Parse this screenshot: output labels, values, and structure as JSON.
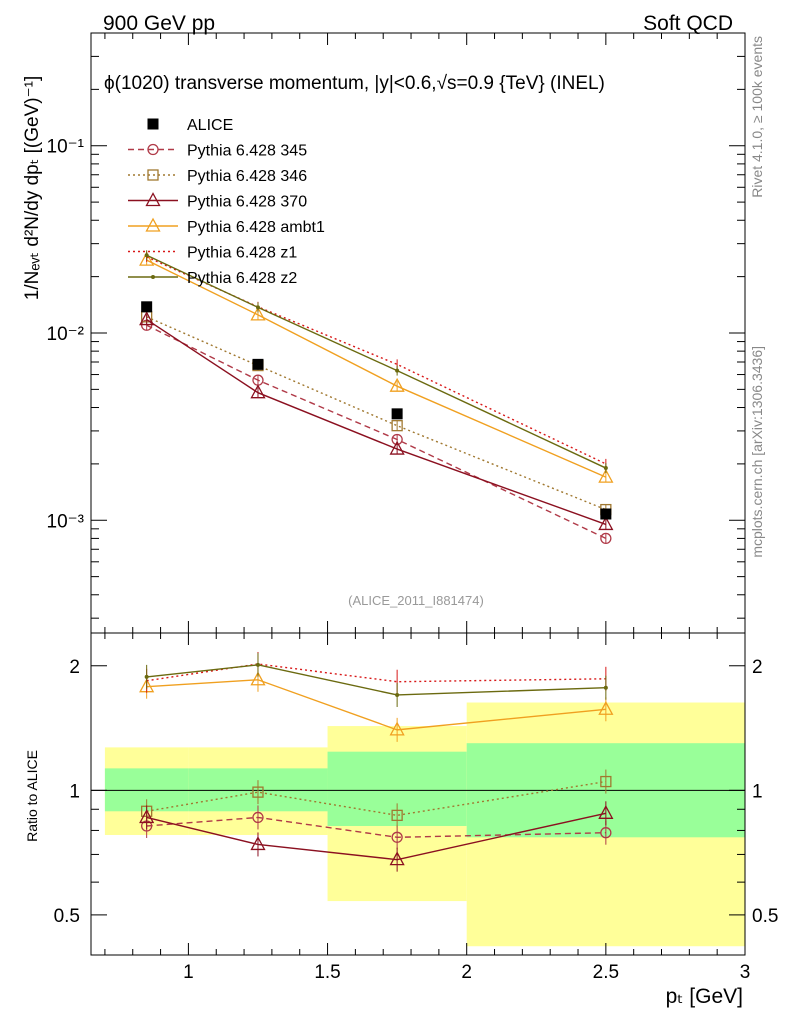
{
  "header": {
    "left": "900 GeV pp",
    "right": "Soft QCD"
  },
  "side": {
    "rivet": "Rivet 4.1.0, ≥ 100k events",
    "url": "mcplots.cern.ch [arXiv:1306.3436]"
  },
  "plot": {
    "title": "ϕ(1020) transverse momentum, |y|<0.6,√s=0.9 {TeV} (INEL)",
    "analysis": "(ALICE_2011_I881474)",
    "ylabel_main": "1/Nₑᵥₜ d²N/dy dpₜ [(GeV)⁻¹]",
    "ylabel_ratio": "Ratio to ALICE",
    "xlabel": "pₜ [GeV]"
  },
  "colors": {
    "band_inner": "#99ff99",
    "band_outer": "#ffff99",
    "data": "#000000"
  },
  "chart_data": {
    "type": "line",
    "x_scale": "linear",
    "y_scale": "log",
    "xlim": [
      0.65,
      3.0
    ],
    "ylim": [
      0.00025,
      0.4
    ],
    "ratio_ylim": [
      0.4,
      2.4
    ],
    "x_ticks": [
      {
        "v": 1,
        "label": "1"
      },
      {
        "v": 1.5,
        "label": "1.5"
      },
      {
        "v": 2,
        "label": "2"
      },
      {
        "v": 2.5,
        "label": "2.5"
      },
      {
        "v": 3,
        "label": "3"
      }
    ],
    "y_ticks": [
      {
        "v": 0.001,
        "label": "10⁻³"
      },
      {
        "v": 0.01,
        "label": "10⁻²"
      },
      {
        "v": 0.1,
        "label": "10⁻¹"
      }
    ],
    "ratio_ticks": [
      {
        "v": 0.5,
        "label": "0.5"
      },
      {
        "v": 1,
        "label": "1"
      },
      {
        "v": 2,
        "label": "2"
      }
    ],
    "data": {
      "name": "ALICE",
      "bins": [
        {
          "x": 0.85,
          "lo": 0.7,
          "hi": 1.0,
          "y": 0.0138,
          "ratio_in": [
            0.89,
            1.13
          ],
          "ratio_out": [
            0.78,
            1.27
          ]
        },
        {
          "x": 1.25,
          "lo": 1.0,
          "hi": 1.5,
          "y": 0.0068,
          "ratio_in": [
            0.89,
            1.13
          ],
          "ratio_out": [
            0.78,
            1.27
          ]
        },
        {
          "x": 1.75,
          "lo": 1.5,
          "hi": 2.0,
          "y": 0.0037,
          "ratio_in": [
            0.82,
            1.24
          ],
          "ratio_out": [
            0.54,
            1.43
          ]
        },
        {
          "x": 2.5,
          "lo": 2.0,
          "hi": 3.0,
          "y": 0.00108,
          "ratio_in": [
            0.77,
            1.3
          ],
          "ratio_out": [
            0.42,
            1.63
          ]
        }
      ]
    },
    "series": [
      {
        "name": "Pythia 6.428 345",
        "color": "#b03a48",
        "dash": "6,4",
        "marker": "circle",
        "x": [
          0.85,
          1.25,
          1.75,
          2.5
        ],
        "y": [
          0.011,
          0.0056,
          0.0027,
          0.0008
        ],
        "ratio": [
          0.82,
          0.86,
          0.77,
          0.79
        ]
      },
      {
        "name": "Pythia 6.428 346",
        "color": "#a07830",
        "dash": "2,3",
        "marker": "square",
        "x": [
          0.85,
          1.25,
          1.75,
          2.5
        ],
        "y": [
          0.0122,
          0.0067,
          0.0032,
          0.00114
        ],
        "ratio": [
          0.89,
          0.99,
          0.87,
          1.05
        ]
      },
      {
        "name": "Pythia 6.428 370",
        "color": "#8b1020",
        "dash": "",
        "marker": "triangle",
        "x": [
          0.85,
          1.25,
          1.75,
          2.5
        ],
        "y": [
          0.0118,
          0.0048,
          0.0024,
          0.00095
        ],
        "ratio": [
          0.86,
          0.74,
          0.68,
          0.88
        ]
      },
      {
        "name": "Pythia 6.428 ambt1",
        "color": "#f0a020",
        "dash": "",
        "marker": "triangle",
        "x": [
          0.85,
          1.25,
          1.75,
          2.5
        ],
        "y": [
          0.0245,
          0.0125,
          0.0052,
          0.0017
        ],
        "ratio": [
          1.78,
          1.85,
          1.4,
          1.57
        ]
      },
      {
        "name": "Pythia 6.428 z1",
        "color": "#d81818",
        "dash": "2,3",
        "marker": "none",
        "x": [
          0.85,
          1.25,
          1.75,
          2.5
        ],
        "y": [
          0.0255,
          0.0138,
          0.0068,
          0.002
        ],
        "ratio": [
          1.84,
          2.02,
          1.83,
          1.86
        ]
      },
      {
        "name": "Pythia 6.428 z2",
        "color": "#6b6a10",
        "dash": "",
        "marker": "dot",
        "x": [
          0.85,
          1.25,
          1.75,
          2.5
        ],
        "y": [
          0.026,
          0.0137,
          0.0063,
          0.0019
        ],
        "ratio": [
          1.88,
          2.01,
          1.7,
          1.77
        ]
      }
    ]
  }
}
